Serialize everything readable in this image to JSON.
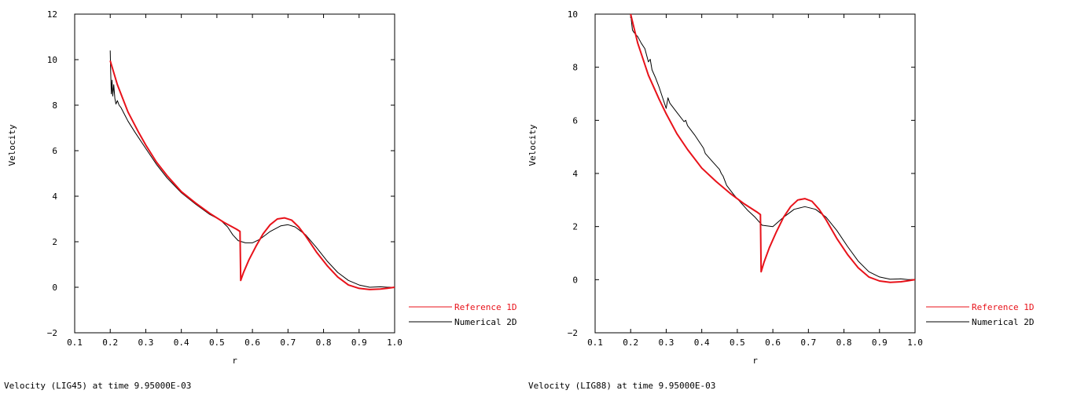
{
  "colors": {
    "reference": "#e8121a",
    "numerical": "#000000",
    "axis": "#000000"
  },
  "chart_data": [
    {
      "type": "line",
      "xlabel": "r",
      "ylabel": "Velocity",
      "caption": "Velocity (LIG45)  at time 9.95000E-03",
      "xlim": [
        0.1,
        1.0
      ],
      "ylim": [
        -2,
        12
      ],
      "xticks": [
        0.1,
        0.2,
        0.3,
        0.4,
        0.5,
        0.6,
        0.7,
        0.8,
        0.9,
        1.0
      ],
      "xtick_labels": [
        "0.1",
        "0.2",
        "0.3",
        "0.4",
        "0.5",
        "0.6",
        "0.7",
        "0.8",
        "0.9",
        "1.0"
      ],
      "yticks": [
        -2,
        0,
        2,
        4,
        6,
        8,
        10,
        12
      ],
      "ytick_labels": [
        "−2",
        "0",
        "2",
        "4",
        "6",
        "8",
        "10",
        "12"
      ],
      "legend_position": "bottom-right outside",
      "series": [
        {
          "name": "Reference 1D",
          "color": "#e8121a",
          "x": [
            0.2,
            0.22,
            0.25,
            0.28,
            0.3,
            0.33,
            0.36,
            0.4,
            0.44,
            0.48,
            0.52,
            0.555,
            0.565,
            0.567,
            0.575,
            0.59,
            0.61,
            0.63,
            0.65,
            0.67,
            0.69,
            0.71,
            0.73,
            0.75,
            0.78,
            0.81,
            0.84,
            0.87,
            0.9,
            0.93,
            0.96,
            0.98,
            1.0
          ],
          "y": [
            9.95,
            8.9,
            7.7,
            6.8,
            6.25,
            5.5,
            4.9,
            4.2,
            3.7,
            3.25,
            2.85,
            2.55,
            2.45,
            0.3,
            0.65,
            1.2,
            1.8,
            2.35,
            2.75,
            3.0,
            3.05,
            2.95,
            2.65,
            2.25,
            1.55,
            0.95,
            0.45,
            0.1,
            -0.05,
            -0.1,
            -0.08,
            -0.04,
            0.0
          ]
        },
        {
          "name": "Numerical 2D",
          "color": "#000000",
          "x": [
            0.2,
            0.201,
            0.203,
            0.205,
            0.207,
            0.21,
            0.213,
            0.216,
            0.22,
            0.225,
            0.23,
            0.24,
            0.25,
            0.27,
            0.3,
            0.33,
            0.36,
            0.4,
            0.44,
            0.48,
            0.51,
            0.53,
            0.545,
            0.56,
            0.58,
            0.6,
            0.62,
            0.65,
            0.68,
            0.7,
            0.72,
            0.75,
            0.78,
            0.81,
            0.84,
            0.87,
            0.9,
            0.93,
            0.96,
            0.98,
            1.0
          ],
          "y": [
            10.4,
            9.6,
            8.5,
            9.1,
            8.4,
            8.9,
            8.3,
            8.05,
            8.2,
            8.0,
            7.9,
            7.6,
            7.3,
            6.8,
            6.1,
            5.4,
            4.8,
            4.15,
            3.65,
            3.2,
            2.95,
            2.65,
            2.3,
            2.05,
            1.95,
            1.95,
            2.1,
            2.45,
            2.7,
            2.75,
            2.65,
            2.3,
            1.75,
            1.15,
            0.65,
            0.3,
            0.1,
            0.0,
            0.02,
            0.0,
            0.0
          ]
        }
      ]
    },
    {
      "type": "line",
      "xlabel": "r",
      "ylabel": "Velocity",
      "caption": "Velocity (LIG88)  at time 9.95000E-03",
      "xlim": [
        0.1,
        1.0
      ],
      "ylim": [
        -2,
        10
      ],
      "xticks": [
        0.1,
        0.2,
        0.3,
        0.4,
        0.5,
        0.6,
        0.7,
        0.8,
        0.9,
        1.0
      ],
      "xtick_labels": [
        "0.1",
        "0.2",
        "0.3",
        "0.4",
        "0.5",
        "0.6",
        "0.7",
        "0.8",
        "0.9",
        "1.0"
      ],
      "yticks": [
        -2,
        0,
        2,
        4,
        6,
        8,
        10
      ],
      "ytick_labels": [
        "−2",
        "0",
        "2",
        "4",
        "6",
        "8",
        "10"
      ],
      "legend_position": "bottom-right outside",
      "series": [
        {
          "name": "Reference 1D",
          "color": "#e8121a",
          "x": [
            0.2,
            0.22,
            0.25,
            0.28,
            0.3,
            0.33,
            0.36,
            0.4,
            0.44,
            0.48,
            0.52,
            0.555,
            0.565,
            0.567,
            0.575,
            0.59,
            0.61,
            0.63,
            0.65,
            0.67,
            0.69,
            0.71,
            0.73,
            0.75,
            0.78,
            0.81,
            0.84,
            0.87,
            0.9,
            0.93,
            0.96,
            0.98,
            1.0
          ],
          "y": [
            10.0,
            8.9,
            7.7,
            6.8,
            6.25,
            5.5,
            4.9,
            4.2,
            3.7,
            3.25,
            2.85,
            2.55,
            2.45,
            0.3,
            0.65,
            1.2,
            1.8,
            2.35,
            2.75,
            3.0,
            3.05,
            2.95,
            2.65,
            2.25,
            1.55,
            0.95,
            0.45,
            0.1,
            -0.05,
            -0.1,
            -0.08,
            -0.04,
            0.0
          ]
        },
        {
          "name": "Numerical 2D",
          "color": "#000000",
          "x": [
            0.2,
            0.205,
            0.21,
            0.22,
            0.23,
            0.24,
            0.25,
            0.255,
            0.26,
            0.27,
            0.28,
            0.29,
            0.3,
            0.305,
            0.31,
            0.33,
            0.35,
            0.355,
            0.36,
            0.38,
            0.4,
            0.405,
            0.41,
            0.43,
            0.45,
            0.455,
            0.46,
            0.47,
            0.49,
            0.51,
            0.53,
            0.55,
            0.57,
            0.6,
            0.63,
            0.66,
            0.69,
            0.72,
            0.75,
            0.78,
            0.81,
            0.84,
            0.87,
            0.9,
            0.93,
            0.96,
            0.98,
            1.0
          ],
          "y": [
            10.0,
            9.4,
            9.3,
            9.15,
            8.9,
            8.7,
            8.2,
            8.3,
            7.9,
            7.6,
            7.25,
            6.85,
            6.45,
            6.85,
            6.65,
            6.3,
            5.95,
            6.0,
            5.8,
            5.45,
            5.05,
            4.95,
            4.75,
            4.45,
            4.15,
            4.0,
            3.9,
            3.55,
            3.2,
            2.9,
            2.6,
            2.35,
            2.05,
            2.0,
            2.35,
            2.65,
            2.75,
            2.65,
            2.35,
            1.85,
            1.25,
            0.7,
            0.3,
            0.1,
            0.02,
            0.03,
            0.0,
            0.0
          ]
        }
      ]
    }
  ]
}
